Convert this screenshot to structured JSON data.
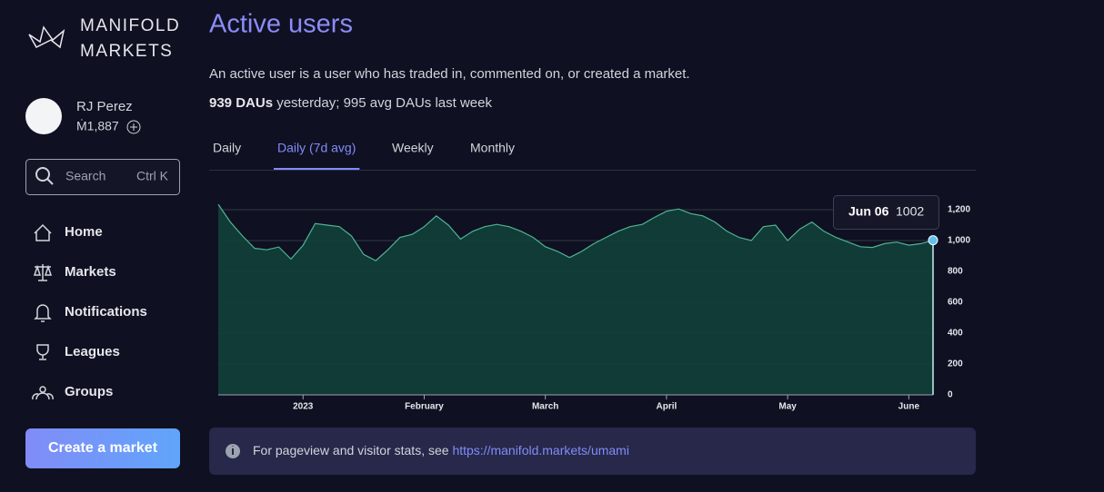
{
  "sidebar": {
    "logo": [
      "MANIFOLD",
      "MARKETS"
    ],
    "user": {
      "name": "RJ Perez",
      "balance": "Ṁ1,887"
    },
    "search": {
      "placeholder": "Search",
      "shortcut": "Ctrl K"
    },
    "nav": [
      "Home",
      "Markets",
      "Notifications",
      "Leagues",
      "Groups"
    ],
    "button": "Create a market"
  },
  "page": {
    "title": "Active users",
    "description": "An active user is a user who has traded in, commented on, or created a market.",
    "stats_bold": "939 DAUs",
    "stats_rest": " yesterday; 995 avg DAUs last week",
    "tabs": [
      "Daily",
      "Daily (7d avg)",
      "Weekly",
      "Monthly"
    ],
    "active_tab": 1,
    "info_text": "For pageview and visitor stats, see ",
    "info_link": "https://manifold.markets/umami"
  },
  "chart_data": {
    "type": "area",
    "categories": [
      null,
      null,
      null,
      null,
      null,
      null,
      null,
      "2023",
      null,
      null,
      null,
      null,
      null,
      null,
      null,
      null,
      null,
      "February",
      null,
      null,
      null,
      null,
      null,
      null,
      null,
      null,
      null,
      "March",
      null,
      null,
      null,
      null,
      null,
      null,
      null,
      null,
      null,
      "April",
      null,
      null,
      null,
      null,
      null,
      null,
      null,
      null,
      null,
      "May",
      null,
      null,
      null,
      null,
      null,
      null,
      null,
      null,
      null,
      "June",
      null,
      null
    ],
    "values": [
      1235,
      1120,
      1030,
      950,
      940,
      958,
      880,
      970,
      1110,
      1100,
      1090,
      1030,
      910,
      870,
      940,
      1020,
      1040,
      1090,
      1160,
      1100,
      1010,
      1060,
      1090,
      1105,
      1090,
      1060,
      1020,
      960,
      930,
      890,
      930,
      980,
      1020,
      1060,
      1090,
      1105,
      1150,
      1190,
      1205,
      1175,
      1160,
      1120,
      1060,
      1020,
      1000,
      1090,
      1100,
      1000,
      1075,
      1120,
      1060,
      1020,
      990,
      960,
      955,
      980,
      990,
      970,
      980,
      1002
    ],
    "color": "#4fb394",
    "fill": "#12403a",
    "ylim": [
      0,
      1300
    ],
    "yticks": [
      0,
      200,
      400,
      600,
      800,
      {
        "value": 1000,
        "label": "1,000"
      },
      {
        "value": 1200,
        "label": "1,200"
      }
    ],
    "grid": true,
    "highlight": {
      "index": 59,
      "label": "Jun 06"
    }
  }
}
